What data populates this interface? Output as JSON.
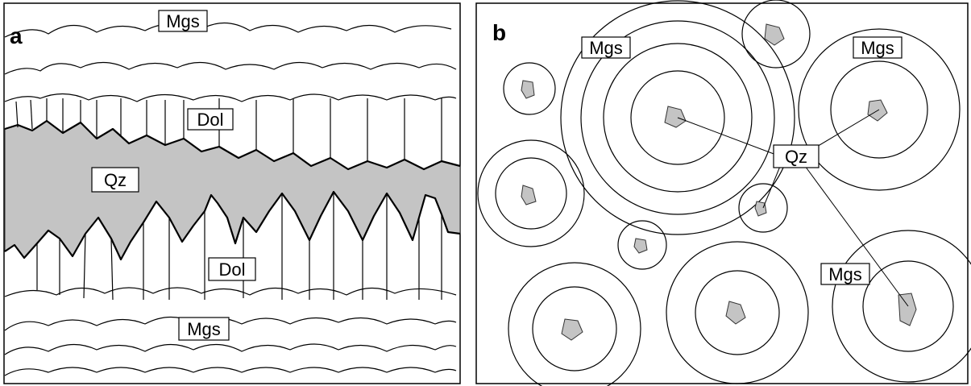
{
  "figure": {
    "panel_a": {
      "letter": "a",
      "labels": {
        "mgs_top": "Mgs",
        "dol_top": "Dol",
        "qz": "Qz",
        "dol_bottom": "Dol",
        "mgs_bottom": "Mgs"
      },
      "colors": {
        "quartz_fill": "#c4c4c4",
        "line": "#000000"
      }
    },
    "panel_b": {
      "letter": "b",
      "labels": {
        "mgs_upper_left": "Mgs",
        "mgs_upper_right": "Mgs",
        "qz": "Qz",
        "mgs_lower_right": "Mgs"
      },
      "colors": {
        "quartz_fill": "#c4c4c4",
        "line": "#000000"
      }
    }
  }
}
